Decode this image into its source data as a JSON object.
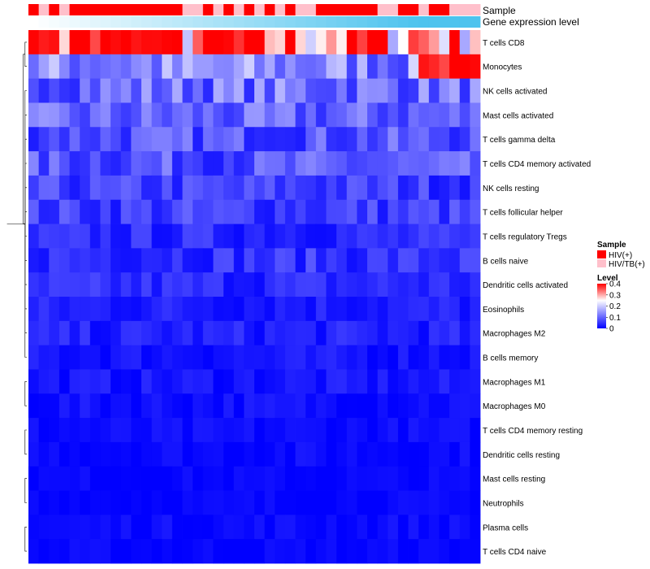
{
  "chart_data": {
    "type": "heatmap",
    "title": "",
    "annotation_labels": {
      "sample": "Sample",
      "gene": "Gene expression level"
    },
    "rows": [
      "T cells CD8",
      "Monocytes",
      "NK cells activated",
      "Mast cells activated",
      "T cells gamma delta",
      "T cells CD4 memory activated",
      "NK cells resting",
      "T cells follicular helper",
      "T cells regulatory  Tregs",
      "B cells naive",
      "Dendritic cells activated",
      "Eosinophils",
      "Macrophages M2",
      "B cells memory",
      "Macrophages M1",
      "Macrophages M0",
      "T cells CD4 memory resting",
      "Dendritic cells resting",
      "Mast cells resting",
      "Neutrophils",
      "Plasma cells",
      "T cells CD4 naive"
    ],
    "row_base_levels": [
      0.34,
      0.13,
      0.11,
      0.09,
      0.08,
      0.08,
      0.06,
      0.06,
      0.04,
      0.05,
      0.04,
      0.03,
      0.03,
      0.02,
      0.02,
      0.015,
      0.01,
      0.01,
      0.005,
      0.005,
      0.01,
      0.005
    ],
    "n_samples": 44,
    "sample_groups_code": "01010000000000011010101010110000001100100111",
    "sample_group_names": [
      "HIV(+)",
      "HIV/TB(+)"
    ],
    "sample_group_colors": [
      "#ff0000",
      "#ffc0cb"
    ],
    "gene_level_gradient": [
      "#ffffff",
      "#4dc3ee"
    ],
    "color_scale": {
      "low": "#0000ff",
      "mid": "#ffffff",
      "high": "#ff0000",
      "min": 0,
      "mid_value": 0.25,
      "max": 0.4
    },
    "legend": {
      "sample_title": "Sample",
      "level_title": "Level",
      "level_ticks": [
        "0.4",
        "0.3",
        "0.2",
        "0.1",
        "0"
      ],
      "level_tick_values": [
        0.4,
        0.3,
        0.2,
        0.1,
        0
      ]
    },
    "dendrogram_merges": [
      [
        0,
        1
      ],
      [
        7,
        8
      ],
      [
        6,
        9
      ],
      [
        5,
        10
      ],
      [
        4,
        11
      ],
      [
        3,
        12
      ],
      [
        2,
        13
      ],
      [
        16,
        17
      ],
      [
        18,
        19
      ],
      [
        20,
        21
      ],
      [
        14,
        15
      ],
      [
        22,
        23
      ],
      [
        24,
        25
      ],
      [
        26,
        27
      ]
    ]
  }
}
